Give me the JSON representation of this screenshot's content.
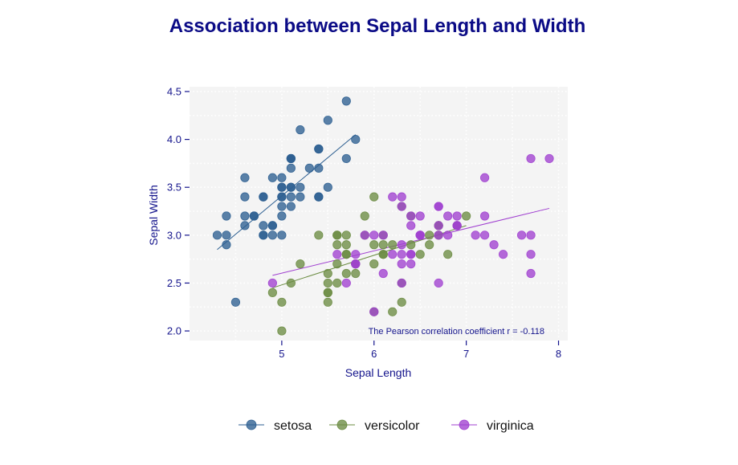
{
  "chart_data": {
    "type": "scatter",
    "title": "Association between Sepal Length and Width",
    "xlabel": "Sepal Length",
    "ylabel": "Sepal Width",
    "xlim": [
      4.0,
      8.1
    ],
    "ylim": [
      1.9,
      4.55
    ],
    "xticks": [
      5,
      6,
      7,
      8
    ],
    "yticks": [
      2.0,
      2.5,
      3.0,
      3.5,
      4.0,
      4.5
    ],
    "ytick_labels": [
      "2.0",
      "2.5",
      "3.0",
      "3.5",
      "4.0",
      "4.5"
    ],
    "grid": true,
    "legend_position": "bottom",
    "annotation": "The Pearson correlation coefficient r =  -0.118",
    "series": [
      {
        "name": "setosa",
        "color": "#2d5f91",
        "points": [
          [
            5.1,
            3.5
          ],
          [
            4.9,
            3.0
          ],
          [
            4.7,
            3.2
          ],
          [
            4.6,
            3.1
          ],
          [
            5.0,
            3.6
          ],
          [
            5.4,
            3.9
          ],
          [
            4.6,
            3.4
          ],
          [
            5.0,
            3.4
          ],
          [
            4.4,
            2.9
          ],
          [
            4.9,
            3.1
          ],
          [
            5.4,
            3.7
          ],
          [
            4.8,
            3.4
          ],
          [
            4.8,
            3.0
          ],
          [
            4.3,
            3.0
          ],
          [
            5.8,
            4.0
          ],
          [
            5.7,
            4.4
          ],
          [
            5.4,
            3.9
          ],
          [
            5.1,
            3.5
          ],
          [
            5.7,
            3.8
          ],
          [
            5.1,
            3.8
          ],
          [
            5.4,
            3.4
          ],
          [
            5.1,
            3.7
          ],
          [
            4.6,
            3.6
          ],
          [
            5.1,
            3.3
          ],
          [
            4.8,
            3.4
          ],
          [
            5.0,
            3.0
          ],
          [
            5.0,
            3.4
          ],
          [
            5.2,
            3.5
          ],
          [
            5.2,
            3.4
          ],
          [
            4.7,
            3.2
          ],
          [
            4.8,
            3.1
          ],
          [
            5.4,
            3.4
          ],
          [
            5.2,
            4.1
          ],
          [
            5.5,
            4.2
          ],
          [
            4.9,
            3.1
          ],
          [
            5.0,
            3.2
          ],
          [
            5.5,
            3.5
          ],
          [
            4.9,
            3.6
          ],
          [
            4.4,
            3.0
          ],
          [
            5.1,
            3.4
          ],
          [
            5.0,
            3.5
          ],
          [
            4.5,
            2.3
          ],
          [
            4.4,
            3.2
          ],
          [
            5.0,
            3.5
          ],
          [
            5.1,
            3.8
          ],
          [
            4.8,
            3.0
          ],
          [
            5.1,
            3.8
          ],
          [
            4.6,
            3.2
          ],
          [
            5.3,
            3.7
          ],
          [
            5.0,
            3.3
          ]
        ],
        "fit": [
          [
            4.3,
            2.85
          ],
          [
            5.8,
            4.05
          ]
        ]
      },
      {
        "name": "versicolor",
        "color": "#6b8c42",
        "points": [
          [
            7.0,
            3.2
          ],
          [
            6.4,
            3.2
          ],
          [
            6.9,
            3.1
          ],
          [
            5.5,
            2.3
          ],
          [
            6.5,
            2.8
          ],
          [
            5.7,
            2.8
          ],
          [
            6.3,
            3.3
          ],
          [
            4.9,
            2.4
          ],
          [
            6.6,
            2.9
          ],
          [
            5.2,
            2.7
          ],
          [
            5.0,
            2.0
          ],
          [
            5.9,
            3.0
          ],
          [
            6.0,
            2.2
          ],
          [
            6.1,
            2.9
          ],
          [
            5.6,
            2.9
          ],
          [
            6.7,
            3.1
          ],
          [
            5.6,
            3.0
          ],
          [
            5.8,
            2.7
          ],
          [
            6.2,
            2.2
          ],
          [
            5.6,
            2.5
          ],
          [
            5.9,
            3.2
          ],
          [
            6.1,
            2.8
          ],
          [
            6.3,
            2.5
          ],
          [
            6.1,
            2.8
          ],
          [
            6.4,
            2.9
          ],
          [
            6.6,
            3.0
          ],
          [
            6.8,
            2.8
          ],
          [
            6.7,
            3.0
          ],
          [
            6.0,
            2.9
          ],
          [
            5.7,
            2.6
          ],
          [
            5.5,
            2.4
          ],
          [
            5.5,
            2.4
          ],
          [
            5.8,
            2.7
          ],
          [
            6.0,
            2.7
          ],
          [
            5.4,
            3.0
          ],
          [
            6.0,
            3.4
          ],
          [
            6.7,
            3.1
          ],
          [
            6.3,
            2.3
          ],
          [
            5.6,
            3.0
          ],
          [
            5.5,
            2.5
          ],
          [
            5.5,
            2.6
          ],
          [
            6.1,
            3.0
          ],
          [
            5.8,
            2.6
          ],
          [
            5.0,
            2.3
          ],
          [
            5.6,
            2.7
          ],
          [
            5.7,
            3.0
          ],
          [
            5.7,
            2.9
          ],
          [
            6.2,
            2.9
          ],
          [
            5.1,
            2.5
          ],
          [
            5.7,
            2.8
          ]
        ],
        "fit": [
          [
            4.9,
            2.45
          ],
          [
            7.0,
            3.1
          ]
        ]
      },
      {
        "name": "virginica",
        "color": "#a040d0",
        "points": [
          [
            6.3,
            3.3
          ],
          [
            5.8,
            2.7
          ],
          [
            7.1,
            3.0
          ],
          [
            6.3,
            2.9
          ],
          [
            6.5,
            3.0
          ],
          [
            7.6,
            3.0
          ],
          [
            4.9,
            2.5
          ],
          [
            7.3,
            2.9
          ],
          [
            6.7,
            2.5
          ],
          [
            7.2,
            3.6
          ],
          [
            6.5,
            3.2
          ],
          [
            6.4,
            2.7
          ],
          [
            6.8,
            3.0
          ],
          [
            5.7,
            2.5
          ],
          [
            5.8,
            2.8
          ],
          [
            6.4,
            3.2
          ],
          [
            6.5,
            3.0
          ],
          [
            7.7,
            3.8
          ],
          [
            7.7,
            2.6
          ],
          [
            6.0,
            2.2
          ],
          [
            6.9,
            3.2
          ],
          [
            5.6,
            2.8
          ],
          [
            7.7,
            2.8
          ],
          [
            6.3,
            2.7
          ],
          [
            6.7,
            3.3
          ],
          [
            7.2,
            3.2
          ],
          [
            6.2,
            2.8
          ],
          [
            6.1,
            3.0
          ],
          [
            6.4,
            2.8
          ],
          [
            7.2,
            3.0
          ],
          [
            7.4,
            2.8
          ],
          [
            7.9,
            3.8
          ],
          [
            6.4,
            2.8
          ],
          [
            6.3,
            2.8
          ],
          [
            6.1,
            2.6
          ],
          [
            7.7,
            3.0
          ],
          [
            6.3,
            3.4
          ],
          [
            6.4,
            3.1
          ],
          [
            6.0,
            3.0
          ],
          [
            6.9,
            3.1
          ],
          [
            6.7,
            3.1
          ],
          [
            6.9,
            3.1
          ],
          [
            5.8,
            2.7
          ],
          [
            6.8,
            3.2
          ],
          [
            6.7,
            3.3
          ],
          [
            6.7,
            3.0
          ],
          [
            6.3,
            2.5
          ],
          [
            6.5,
            3.0
          ],
          [
            6.2,
            3.4
          ],
          [
            5.9,
            3.0
          ]
        ],
        "fit": [
          [
            4.9,
            2.58
          ],
          [
            7.9,
            3.28
          ]
        ]
      }
    ]
  }
}
